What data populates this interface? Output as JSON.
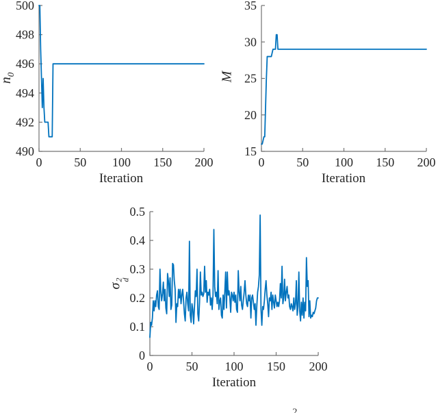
{
  "figure": {
    "line_color": "#0072BD",
    "axis_color": "#737373",
    "text_color": "#262626",
    "background": "#ffffff",
    "caption_fragment": "2"
  },
  "chart_data": [
    {
      "id": "n0",
      "type": "line",
      "title": "",
      "xlabel": "Iteration",
      "ylabel": "n_0",
      "ylabel_base": "n",
      "ylabel_sup": "",
      "ylabel_sub": "0",
      "xlim": [
        0,
        200
      ],
      "ylim": [
        490,
        500
      ],
      "xticks": [
        0,
        50,
        100,
        150,
        200
      ],
      "yticks": [
        490,
        492,
        494,
        496,
        498,
        500
      ],
      "grid": false,
      "legend": null,
      "x": [
        0,
        1,
        2,
        3,
        4,
        5,
        6,
        7,
        8,
        9,
        10,
        11,
        12,
        13,
        14,
        15,
        16,
        17,
        18,
        200
      ],
      "y": [
        500,
        500,
        497,
        495,
        493,
        495,
        493,
        492,
        492,
        492,
        492,
        492,
        491,
        491,
        491,
        491,
        491,
        496,
        496,
        496
      ]
    },
    {
      "id": "M",
      "type": "line",
      "title": "",
      "xlabel": "Iteration",
      "ylabel": "M",
      "ylabel_base": "M",
      "ylabel_sup": "",
      "ylabel_sub": "",
      "xlim": [
        0,
        200
      ],
      "ylim": [
        15,
        35
      ],
      "xticks": [
        0,
        50,
        100,
        150,
        200
      ],
      "yticks": [
        15,
        20,
        25,
        30,
        35
      ],
      "grid": false,
      "legend": null,
      "x": [
        0,
        1,
        2,
        3,
        4,
        5,
        6,
        7,
        8,
        9,
        10,
        11,
        12,
        13,
        14,
        15,
        16,
        17,
        18,
        19,
        20,
        21,
        200
      ],
      "y": [
        16,
        16,
        16.5,
        17,
        17,
        21,
        25,
        28,
        28,
        28,
        28,
        28,
        28,
        28.5,
        29,
        29,
        29,
        29,
        31,
        31,
        29,
        29,
        29
      ]
    },
    {
      "id": "sigma_d2",
      "type": "line",
      "title": "",
      "xlabel": "Iteration",
      "ylabel": "sigma_d^2",
      "ylabel_base": "σ",
      "ylabel_sup": "2",
      "ylabel_sub": "d",
      "xlim": [
        0,
        200
      ],
      "ylim": [
        0,
        0.5
      ],
      "xticks": [
        0,
        50,
        100,
        150,
        200
      ],
      "yticks": [
        0,
        0.1,
        0.2,
        0.3,
        0.4,
        0.5
      ],
      "grid": false,
      "legend": null,
      "x": null,
      "y": [
        0.063,
        0.115,
        0.105,
        0.13,
        0.19,
        0.155,
        0.19,
        0.17,
        0.21,
        0.225,
        0.17,
        0.16,
        0.3,
        0.22,
        0.19,
        0.215,
        0.255,
        0.19,
        0.23,
        0.165,
        0.145,
        0.285,
        0.26,
        0.205,
        0.27,
        0.16,
        0.175,
        0.32,
        0.315,
        0.26,
        0.23,
        0.115,
        0.18,
        0.17,
        0.23,
        0.2,
        0.23,
        0.18,
        0.21,
        0.23,
        0.19,
        0.145,
        0.12,
        0.2,
        0.22,
        0.18,
        0.155,
        0.397,
        0.14,
        0.115,
        0.18,
        0.16,
        0.11,
        0.17,
        0.225,
        0.205,
        0.3,
        0.145,
        0.12,
        0.185,
        0.29,
        0.21,
        0.22,
        0.205,
        0.215,
        0.31,
        0.22,
        0.26,
        0.185,
        0.22,
        0.21,
        0.23,
        0.175,
        0.2,
        0.16,
        0.21,
        0.438,
        0.24,
        0.205,
        0.22,
        0.18,
        0.295,
        0.16,
        0.19,
        0.2,
        0.14,
        0.13,
        0.21,
        0.16,
        0.22,
        0.29,
        0.165,
        0.29,
        0.21,
        0.225,
        0.2,
        0.15,
        0.22,
        0.21,
        0.19,
        0.22,
        0.185,
        0.21,
        0.16,
        0.15,
        0.295,
        0.22,
        0.19,
        0.24,
        0.175,
        0.16,
        0.19,
        0.22,
        0.26,
        0.21,
        0.18,
        0.17,
        0.21,
        0.19,
        0.21,
        0.13,
        0.2,
        0.21,
        0.185,
        0.16,
        0.18,
        0.105,
        0.17,
        0.22,
        0.24,
        0.28,
        0.488,
        0.16,
        0.105,
        0.17,
        0.16,
        0.19,
        0.23,
        0.26,
        0.21,
        0.18,
        0.135,
        0.2,
        0.19,
        0.22,
        0.16,
        0.21,
        0.185,
        0.165,
        0.21,
        0.19,
        0.17,
        0.185,
        0.17,
        0.19,
        0.25,
        0.2,
        0.31,
        0.18,
        0.2,
        0.265,
        0.19,
        0.22,
        0.24,
        0.2,
        0.21,
        0.17,
        0.16,
        0.18,
        0.17,
        0.155,
        0.2,
        0.16,
        0.18,
        0.26,
        0.14,
        0.17,
        0.29,
        0.155,
        0.12,
        0.185,
        0.14,
        0.2,
        0.13,
        0.185,
        0.155,
        0.34,
        0.24,
        0.26,
        0.135,
        0.19,
        0.13,
        0.14,
        0.135,
        0.15,
        0.145,
        0.155,
        0.165,
        0.19,
        0.2,
        0.2
      ]
    }
  ]
}
